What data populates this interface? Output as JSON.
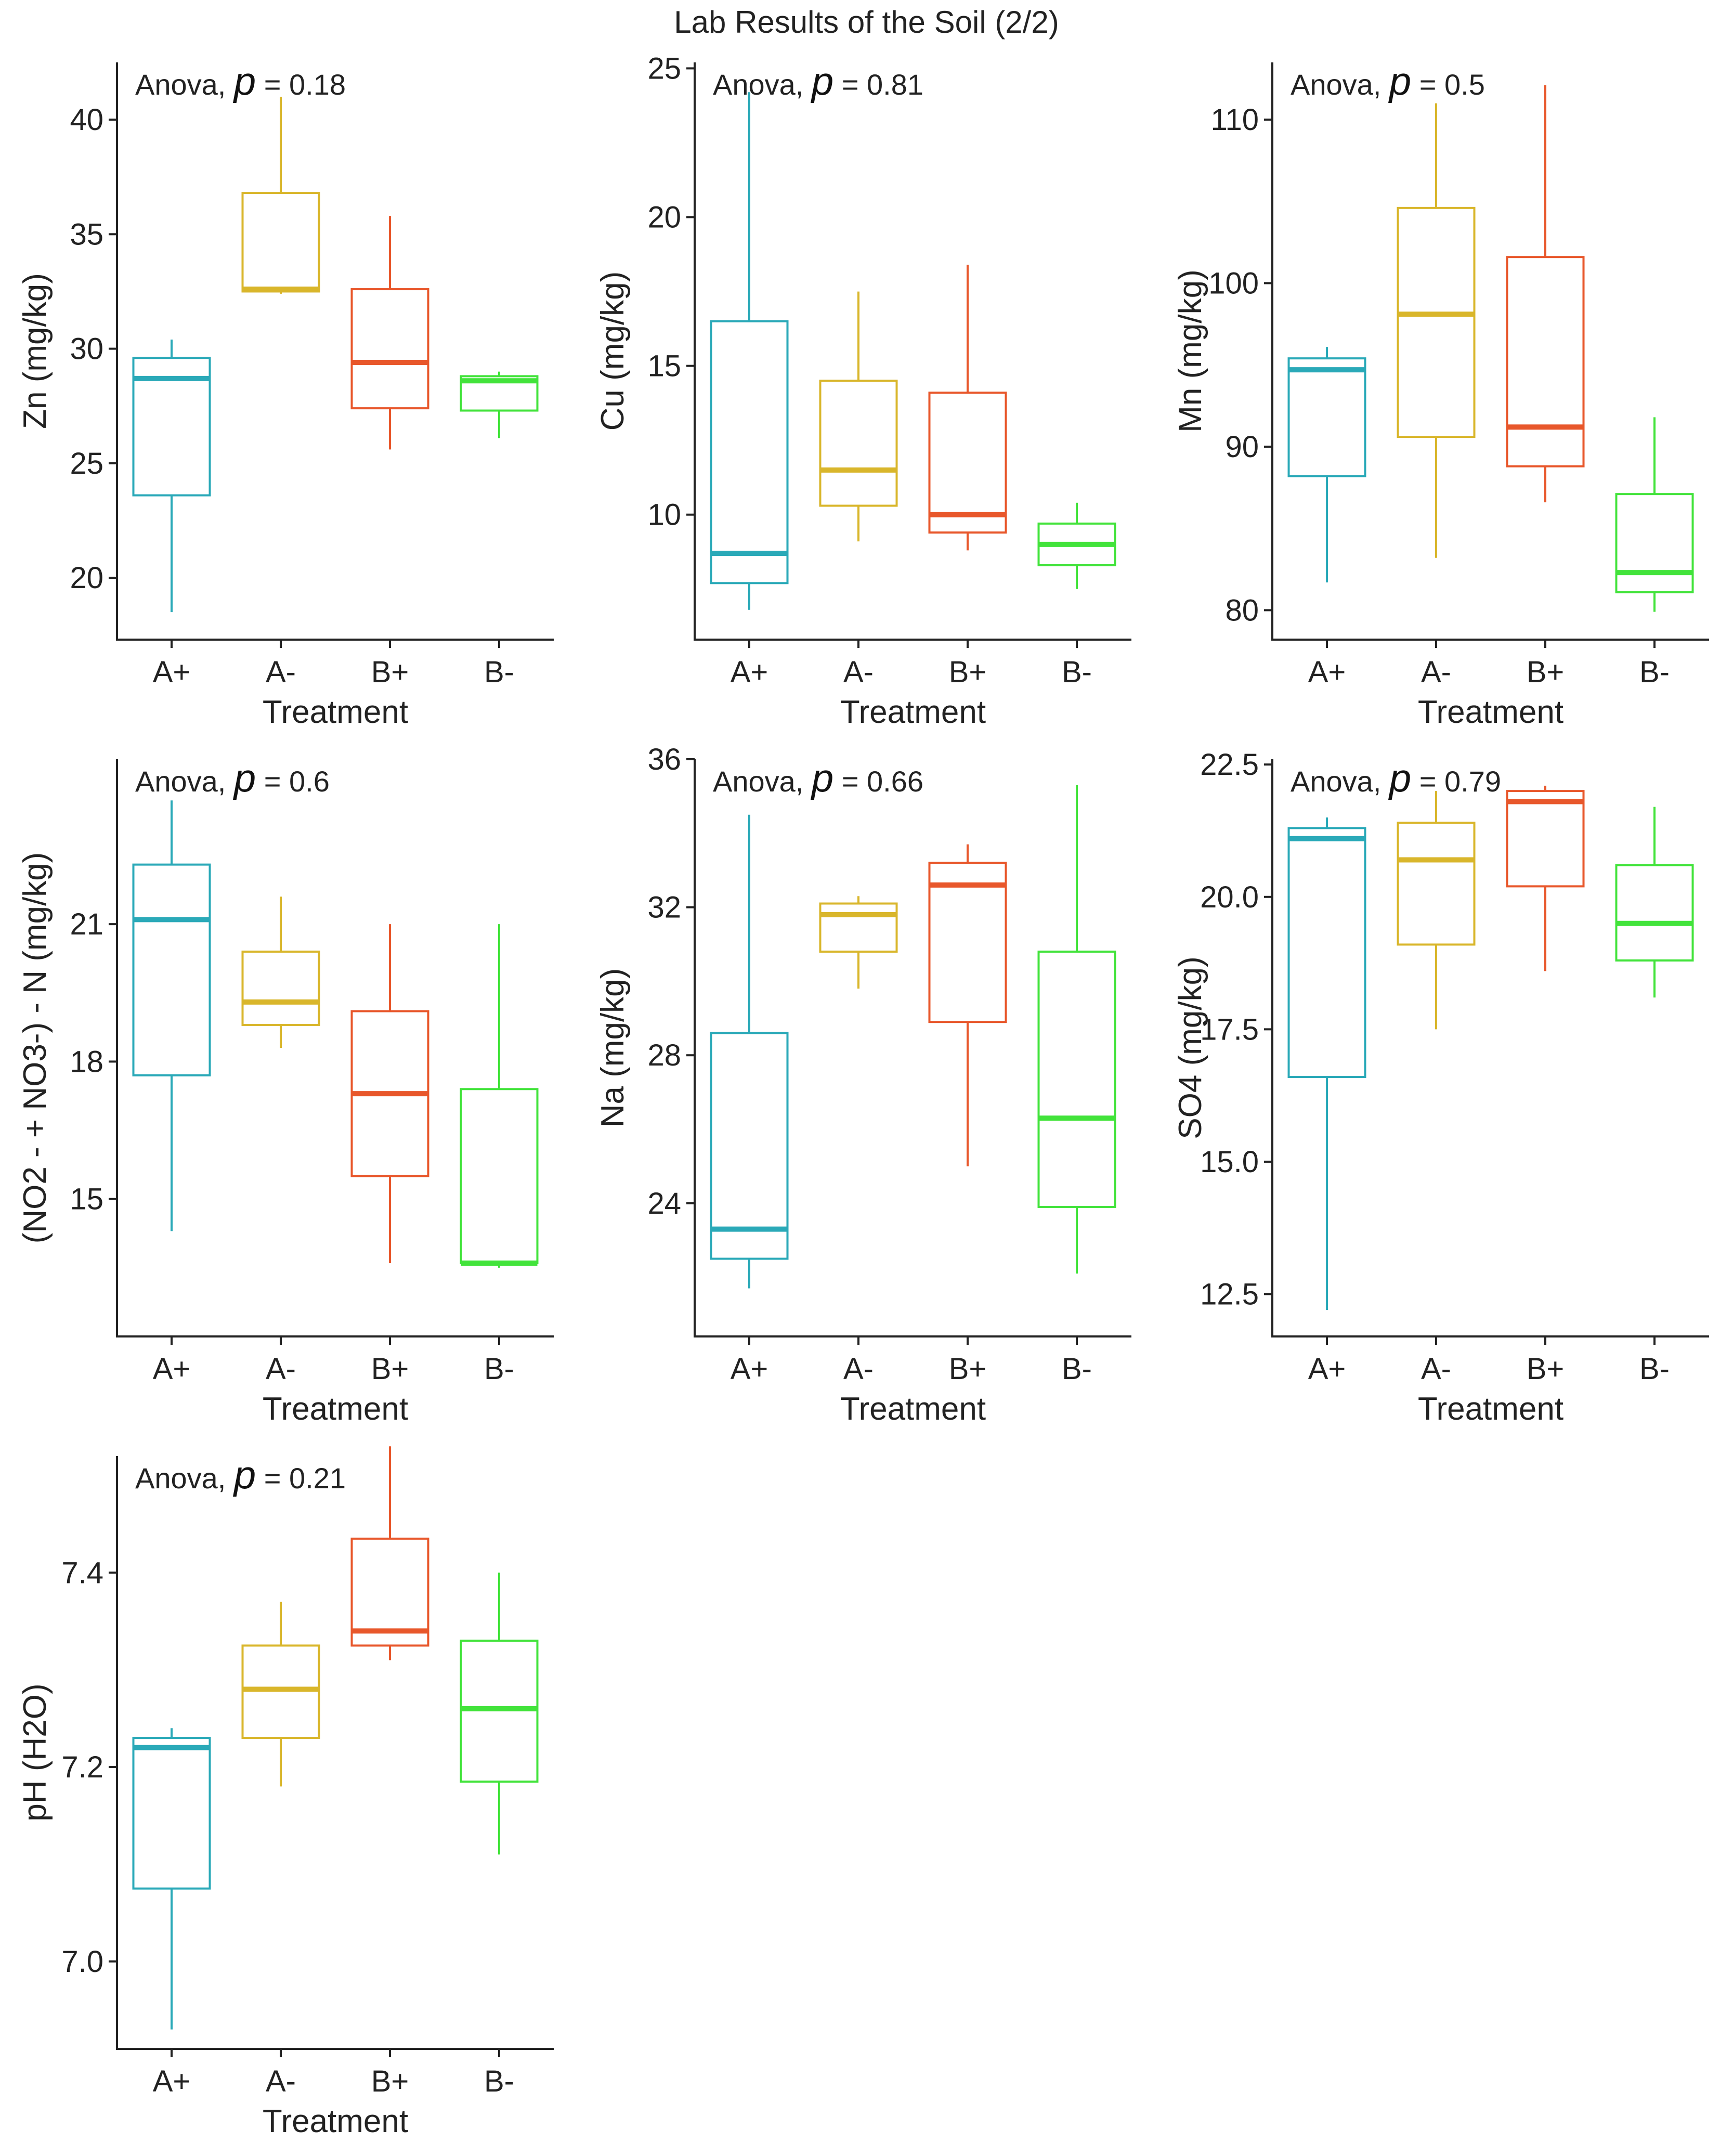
{
  "title": "Lab Results of the Soil (2/2)",
  "colors": {
    "A+": "#2aa9b8",
    "A-": "#d9b62b",
    "B+": "#e8572b",
    "B-": "#42e33b",
    "axis": "#222222"
  },
  "chart_data": [
    {
      "type": "box",
      "ylabel": "Zn (mg/kg)",
      "xlabel": "Treatment",
      "anova_text": "Anova,",
      "p_symbol": "p",
      "p_text": "= 0.18",
      "ylim": [
        17.3,
        42.5
      ],
      "yticks": [
        20,
        25,
        30,
        35,
        40
      ],
      "ytick_labels": [
        "20",
        "25",
        "30",
        "35",
        "40"
      ],
      "categories": [
        "A+",
        "A-",
        "B+",
        "B-"
      ],
      "boxes": [
        {
          "min": 18.5,
          "q1": 23.6,
          "median": 28.7,
          "q3": 29.6,
          "max": 30.4
        },
        {
          "min": 32.4,
          "q1": 32.5,
          "median": 32.6,
          "q3": 36.8,
          "max": 41.0
        },
        {
          "min": 25.6,
          "q1": 27.4,
          "median": 29.4,
          "q3": 32.6,
          "max": 35.8
        },
        {
          "min": 26.1,
          "q1": 27.3,
          "median": 28.6,
          "q3": 28.8,
          "max": 29.0
        }
      ]
    },
    {
      "type": "box",
      "ylabel": "Cu (mg/kg)",
      "xlabel": "Treatment",
      "anova_text": "Anova,",
      "p_symbol": "p",
      "p_text": "= 0.81",
      "ylim": [
        5.8,
        25.2
      ],
      "yticks": [
        10,
        15,
        20,
        25
      ],
      "ytick_labels": [
        "10",
        "15",
        "20",
        "25"
      ],
      "categories": [
        "A+",
        "A-",
        "B+",
        "B-"
      ],
      "boxes": [
        {
          "min": 6.8,
          "q1": 7.7,
          "median": 8.7,
          "q3": 16.5,
          "max": 24.2
        },
        {
          "min": 9.1,
          "q1": 10.3,
          "median": 11.5,
          "q3": 14.5,
          "max": 17.5
        },
        {
          "min": 8.8,
          "q1": 9.4,
          "median": 10.0,
          "q3": 14.1,
          "max": 18.4
        },
        {
          "min": 7.5,
          "q1": 8.3,
          "median": 9.0,
          "q3": 9.7,
          "max": 10.4
        }
      ]
    },
    {
      "type": "box",
      "ylabel": "Mn (mg/kg)",
      "xlabel": "Treatment",
      "anova_text": "Anova,",
      "p_symbol": "p",
      "p_text": "= 0.5",
      "ylim": [
        78.2,
        113.5
      ],
      "yticks": [
        80,
        90,
        100,
        110
      ],
      "ytick_labels": [
        "80",
        "90",
        "100",
        "110"
      ],
      "categories": [
        "A+",
        "A-",
        "B+",
        "B-"
      ],
      "boxes": [
        {
          "min": 81.7,
          "q1": 88.2,
          "median": 94.7,
          "q3": 95.4,
          "max": 96.1
        },
        {
          "min": 83.2,
          "q1": 90.6,
          "median": 98.1,
          "q3": 104.6,
          "max": 111.0
        },
        {
          "min": 86.6,
          "q1": 88.8,
          "median": 91.2,
          "q3": 101.6,
          "max": 112.1
        },
        {
          "min": 79.9,
          "q1": 81.1,
          "median": 82.3,
          "q3": 87.1,
          "max": 91.8
        }
      ]
    },
    {
      "type": "box",
      "ylabel": "(NO2 - + NO3-) - N (mg/kg)",
      "xlabel": "Treatment",
      "anova_text": "Anova,",
      "p_symbol": "p",
      "p_text": "= 0.6",
      "ylim": [
        12.0,
        24.6
      ],
      "yticks": [
        15,
        18,
        21
      ],
      "ytick_labels": [
        "15",
        "18",
        "21"
      ],
      "categories": [
        "A+",
        "A-",
        "B+",
        "B-"
      ],
      "boxes": [
        {
          "min": 14.3,
          "q1": 17.7,
          "median": 21.1,
          "q3": 22.3,
          "max": 23.7
        },
        {
          "min": 18.3,
          "q1": 18.8,
          "median": 19.3,
          "q3": 20.4,
          "max": 21.6
        },
        {
          "min": 13.6,
          "q1": 15.5,
          "median": 17.3,
          "q3": 19.1,
          "max": 21.0
        },
        {
          "min": 13.5,
          "q1": 13.6,
          "median": 13.6,
          "q3": 17.4,
          "max": 21.0
        }
      ]
    },
    {
      "type": "box",
      "ylabel": "Na (mg/kg)",
      "xlabel": "Treatment",
      "anova_text": "Anova,",
      "p_symbol": "p",
      "p_text": "= 0.66",
      "ylim": [
        20.4,
        36.0
      ],
      "yticks": [
        24,
        28,
        32,
        36
      ],
      "ytick_labels": [
        "24",
        "28",
        "32",
        "36"
      ],
      "categories": [
        "A+",
        "A-",
        "B+",
        "B-"
      ],
      "boxes": [
        {
          "min": 21.7,
          "q1": 22.5,
          "median": 23.3,
          "q3": 28.6,
          "max": 34.5
        },
        {
          "min": 29.8,
          "q1": 30.8,
          "median": 31.8,
          "q3": 32.1,
          "max": 32.3
        },
        {
          "min": 25.0,
          "q1": 28.9,
          "median": 32.6,
          "q3": 33.2,
          "max": 33.7
        },
        {
          "min": 22.1,
          "q1": 23.9,
          "median": 26.3,
          "q3": 30.8,
          "max": 35.3
        }
      ]
    },
    {
      "type": "box",
      "ylabel": "SO4 (mg/kg)",
      "xlabel": "Treatment",
      "anova_text": "Anova,",
      "p_symbol": "p",
      "p_text": "= 0.79",
      "ylim": [
        11.7,
        22.6
      ],
      "yticks": [
        12.5,
        15.0,
        17.5,
        20.0,
        22.5
      ],
      "ytick_labels": [
        "12.5",
        "15.0",
        "17.5",
        "20.0",
        "22.5"
      ],
      "categories": [
        "A+",
        "A-",
        "B+",
        "B-"
      ],
      "boxes": [
        {
          "min": 12.2,
          "q1": 16.6,
          "median": 21.1,
          "q3": 21.3,
          "max": 21.5
        },
        {
          "min": 17.5,
          "q1": 19.1,
          "median": 20.7,
          "q3": 21.4,
          "max": 22.0
        },
        {
          "min": 18.6,
          "q1": 20.2,
          "median": 21.8,
          "q3": 22.0,
          "max": 22.1
        },
        {
          "min": 18.1,
          "q1": 18.8,
          "median": 19.5,
          "q3": 20.6,
          "max": 21.7
        }
      ]
    },
    {
      "type": "box",
      "ylabel": "pH (H2O)",
      "xlabel": "Treatment",
      "anova_text": "Anova,",
      "p_symbol": "p",
      "p_text": "= 0.21",
      "ylim": [
        6.91,
        7.52
      ],
      "yticks": [
        7.0,
        7.2,
        7.4
      ],
      "ytick_labels": [
        "7.0",
        "7.2",
        "7.4"
      ],
      "categories": [
        "A+",
        "A-",
        "B+",
        "B-"
      ],
      "boxes": [
        {
          "min": 6.93,
          "q1": 7.075,
          "median": 7.22,
          "q3": 7.23,
          "max": 7.24
        },
        {
          "min": 7.18,
          "q1": 7.23,
          "median": 7.28,
          "q3": 7.325,
          "max": 7.37
        },
        {
          "min": 7.31,
          "q1": 7.325,
          "median": 7.34,
          "q3": 7.435,
          "max": 7.53
        },
        {
          "min": 7.11,
          "q1": 7.185,
          "median": 7.26,
          "q3": 7.33,
          "max": 7.4
        }
      ]
    }
  ]
}
